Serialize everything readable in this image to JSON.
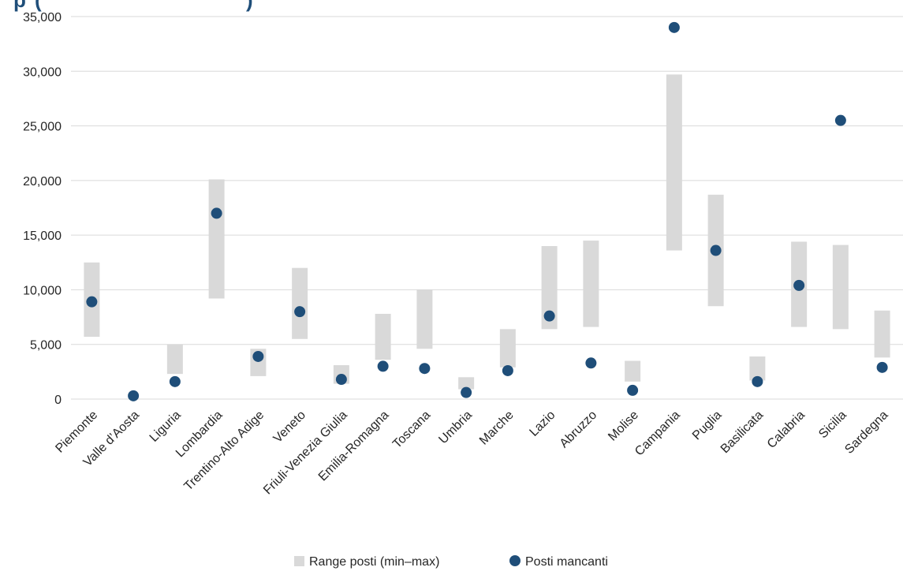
{
  "chart_data": {
    "type": "scatter",
    "categories": [
      "Piemonte",
      "Valle d’Aosta",
      "Liguria",
      "Lombardia",
      "Trentino-Alto Adige",
      "Veneto",
      "Friuli-Venezia Giulia",
      "Emilia-Romagna",
      "Toscana",
      "Umbria",
      "Marche",
      "Lazio",
      "Abruzzo",
      "Molise",
      "Campania",
      "Puglia",
      "Basilicata",
      "Calabria",
      "Sicilia",
      "Sardegna"
    ],
    "series": [
      {
        "name": "Range posti (min–max)",
        "kind": "range",
        "color": "#d9d9d9",
        "min": [
          5700,
          null,
          2300,
          9200,
          2100,
          5500,
          1400,
          3600,
          4600,
          900,
          2900,
          6400,
          6600,
          1600,
          13600,
          8500,
          1700,
          6600,
          6400,
          3800
        ],
        "max": [
          12500,
          null,
          5000,
          20100,
          4600,
          12000,
          3100,
          7800,
          10000,
          2000,
          6400,
          14000,
          14500,
          3500,
          29700,
          18700,
          3900,
          14400,
          14100,
          8100
        ]
      },
      {
        "name": "Posti mancanti",
        "kind": "point",
        "color": "#1f4e79",
        "values": [
          8900,
          300,
          1600,
          17000,
          3900,
          8000,
          1800,
          3000,
          2800,
          600,
          2600,
          7600,
          3300,
          800,
          34000,
          13600,
          1600,
          10400,
          25500,
          2900
        ]
      }
    ],
    "yticks": [
      "0",
      "5,000",
      "10,000",
      "15,000",
      "20,000",
      "25,000",
      "30,000",
      "35,000"
    ],
    "ylim": [
      0,
      35000
    ],
    "grid": true,
    "legend_position": "bottom",
    "title_fragment": "p",
    "title_fragment_2": "(",
    "title_fragment_3": ")"
  }
}
